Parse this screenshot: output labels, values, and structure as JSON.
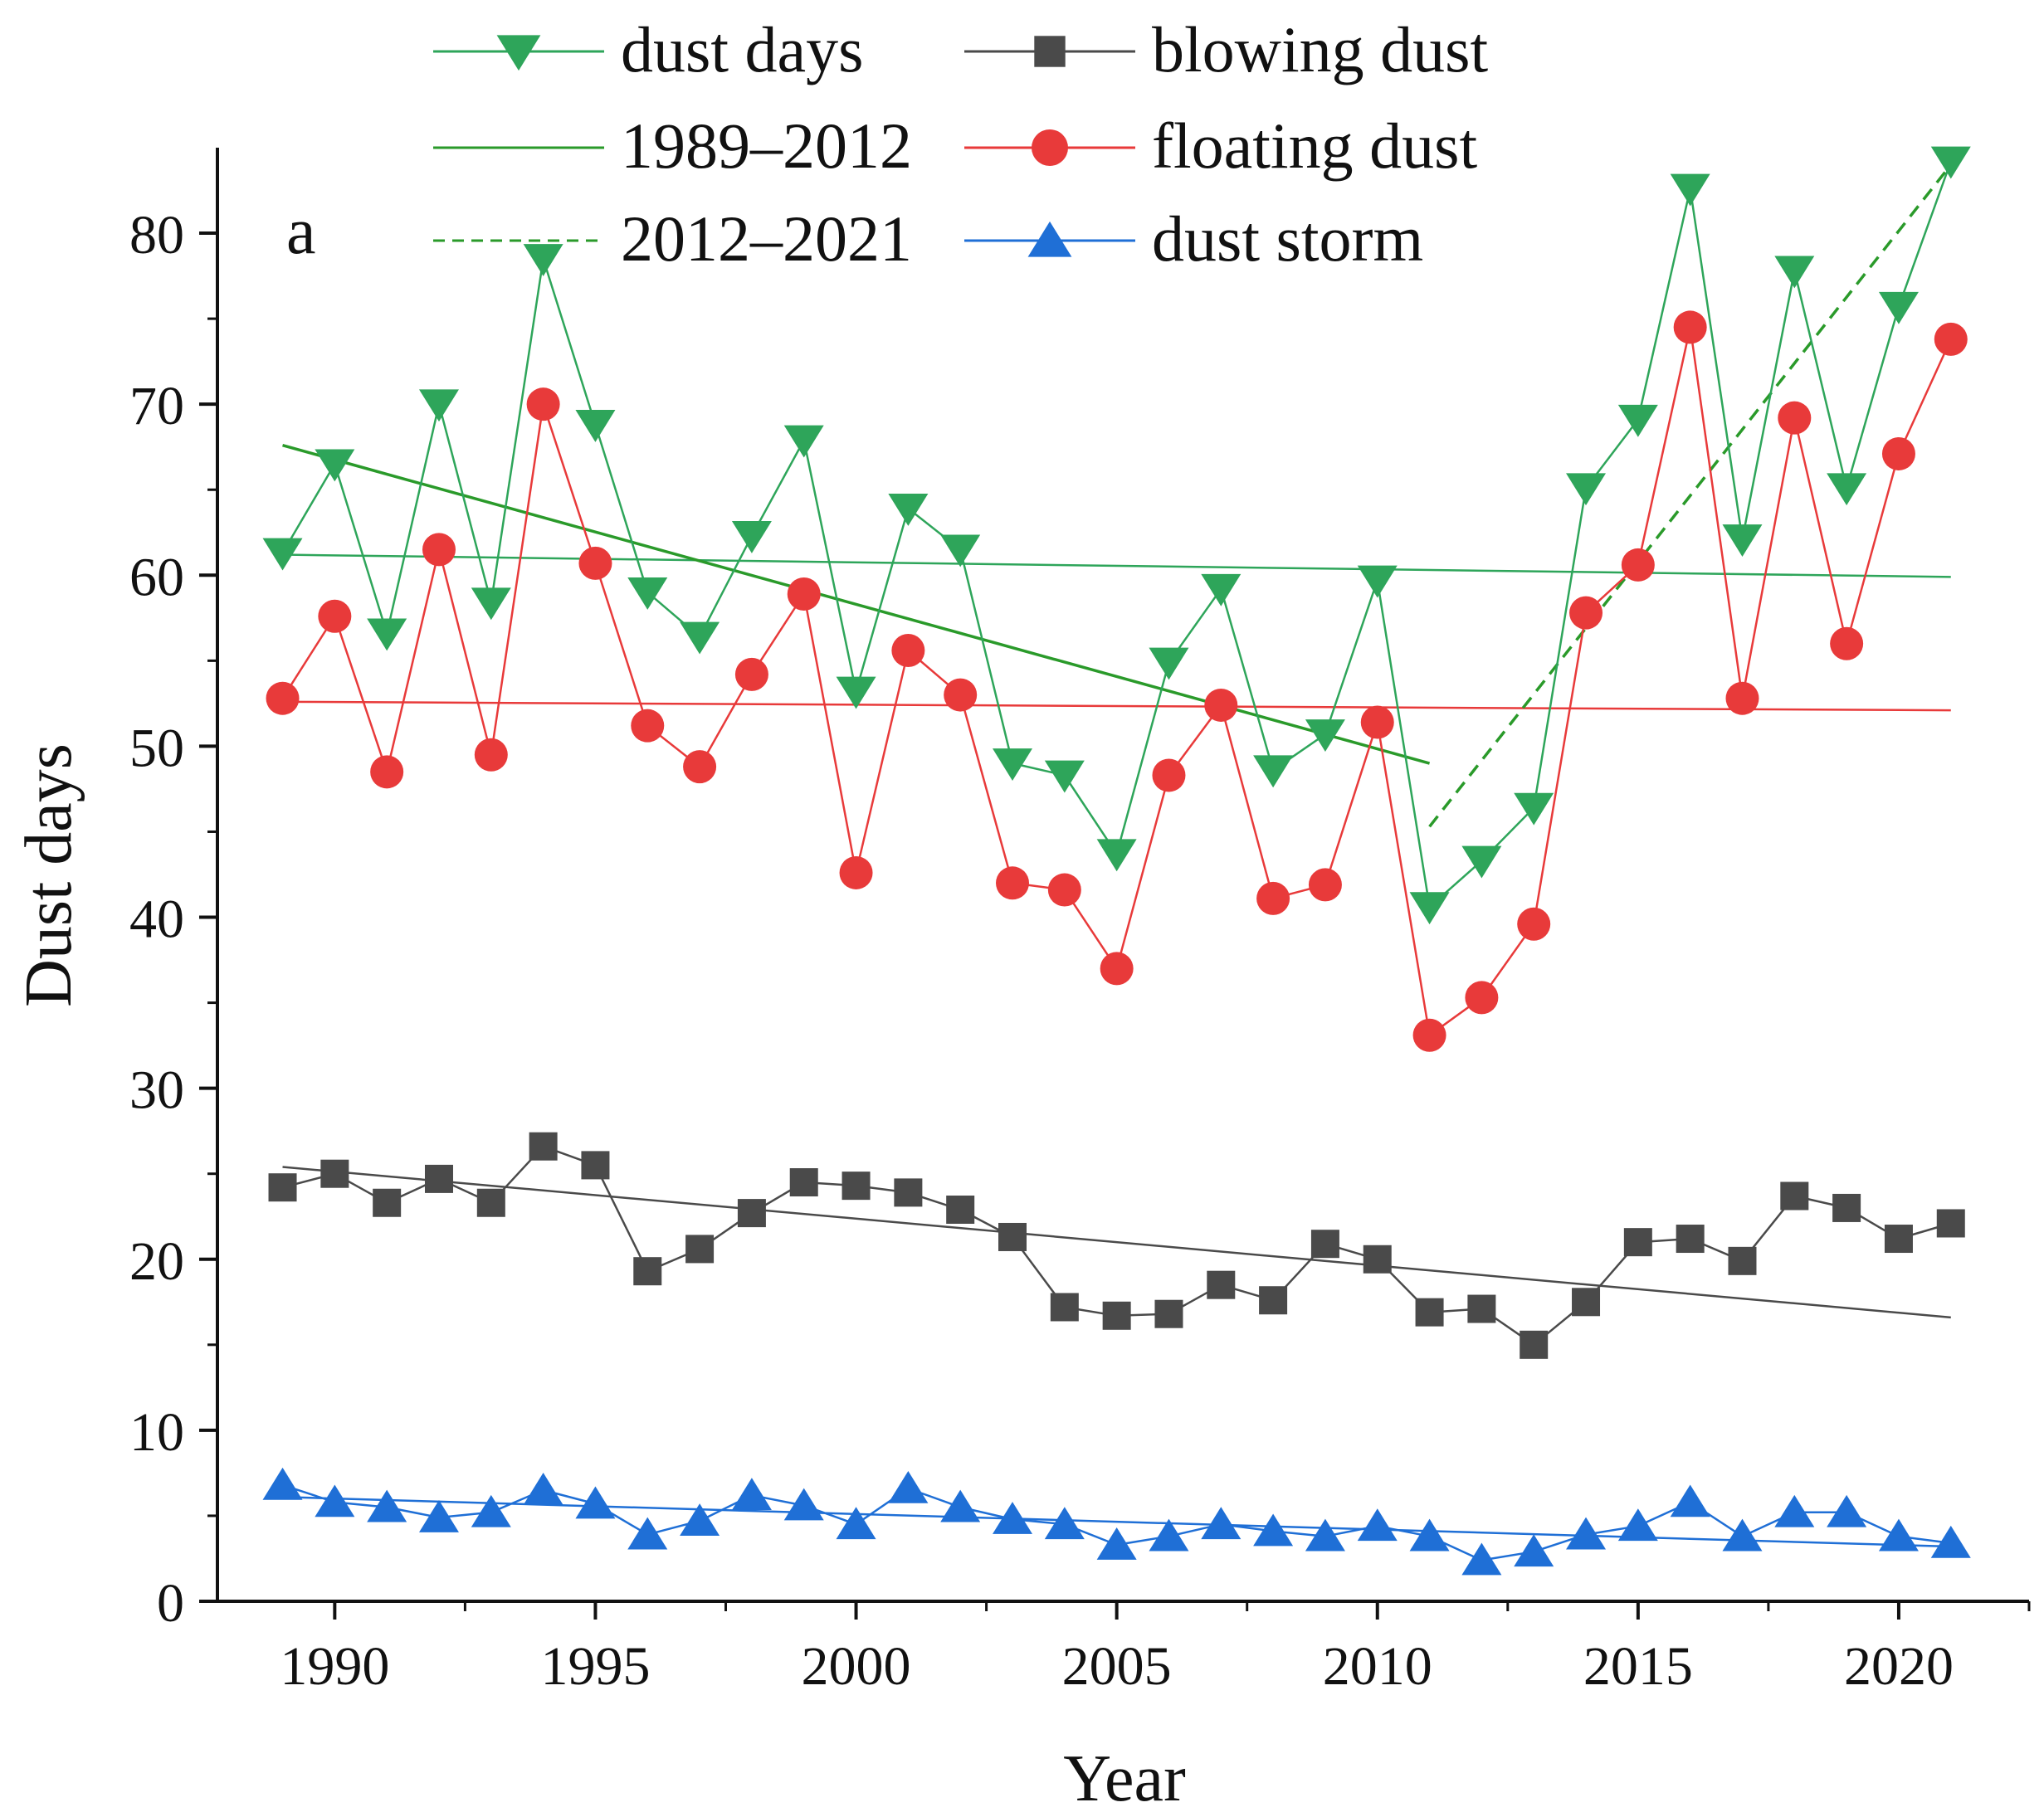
{
  "chart_data": {
    "type": "line",
    "panel_label": "a",
    "xlabel": "Year",
    "ylabel": "Dust days",
    "xlim": [
      1987.75,
      2022.5
    ],
    "ylim": [
      0,
      85
    ],
    "x_ticks": [
      1990,
      1995,
      2000,
      2005,
      2010,
      2015,
      2020
    ],
    "x_tick_labels": [
      "1990",
      "1995",
      "2000",
      "2005",
      "2010",
      "2015",
      "2020"
    ],
    "y_ticks": [
      0,
      10,
      20,
      30,
      40,
      50,
      60,
      70,
      80
    ],
    "y_tick_labels": [
      "0",
      "10",
      "20",
      "30",
      "40",
      "50",
      "60",
      "70",
      "80"
    ],
    "x": [
      1989,
      1990,
      1991,
      1992,
      1993,
      1994,
      1995,
      1996,
      1997,
      1998,
      1999,
      2000,
      2001,
      2002,
      2003,
      2004,
      2005,
      2006,
      2007,
      2008,
      2009,
      2010,
      2011,
      2012,
      2013,
      2014,
      2015,
      2016,
      2017,
      2018,
      2019,
      2020,
      2021
    ],
    "series": [
      {
        "name": "dust days",
        "color": "#2ea55a",
        "marker": "triangle-down",
        "values": [
          61.3,
          66.5,
          56.6,
          70.0,
          58.4,
          78.5,
          68.8,
          59.0,
          56.4,
          62.3,
          67.9,
          53.2,
          63.9,
          61.5,
          49.0,
          48.3,
          43.7,
          54.9,
          59.2,
          48.6,
          50.7,
          59.7,
          40.6,
          43.3,
          46.4,
          65.1,
          69.1,
          82.6,
          62.1,
          77.8,
          65.1,
          75.7,
          84.2
        ],
        "trend": [
          61.2,
          59.9
        ]
      },
      {
        "name": "blowing dust",
        "color": "#4a4a4a",
        "marker": "square",
        "values": [
          24.2,
          25.0,
          23.3,
          24.7,
          23.3,
          26.6,
          25.5,
          19.3,
          20.6,
          22.7,
          24.5,
          24.3,
          23.9,
          22.9,
          21.3,
          17.2,
          16.7,
          16.8,
          18.5,
          17.6,
          20.9,
          20.0,
          16.9,
          17.1,
          15.0,
          17.5,
          21.0,
          21.2,
          19.9,
          23.7,
          23.0,
          21.2,
          22.1
        ],
        "trend": [
          25.4,
          16.6
        ]
      },
      {
        "name": "floating dust",
        "color": "#e83a3a",
        "marker": "circle",
        "values": [
          52.8,
          57.6,
          48.5,
          61.5,
          49.5,
          70.0,
          60.7,
          51.2,
          48.8,
          54.2,
          58.9,
          42.6,
          55.6,
          53.0,
          42.0,
          41.6,
          37.0,
          48.3,
          52.4,
          41.1,
          41.9,
          51.4,
          33.1,
          35.3,
          39.6,
          57.8,
          60.6,
          74.5,
          52.8,
          69.2,
          56.0,
          67.1,
          73.8
        ],
        "trend": [
          52.6,
          52.1
        ]
      },
      {
        "name": "dust storm",
        "color": "#1f6fd6",
        "marker": "triangle-up",
        "values": [
          6.8,
          5.8,
          5.5,
          4.9,
          5.2,
          6.5,
          5.7,
          3.9,
          4.7,
          6.2,
          5.6,
          4.5,
          6.6,
          5.5,
          4.8,
          4.5,
          3.3,
          3.8,
          4.5,
          4.1,
          3.8,
          4.4,
          3.8,
          2.4,
          2.9,
          3.9,
          4.4,
          5.8,
          3.8,
          5.2,
          5.2,
          3.8,
          3.4
        ],
        "trend": [
          6.1,
          3.2
        ]
      }
    ],
    "piecewise_trends": [
      {
        "name": "1989–2012",
        "style": "solid",
        "color": "#2a9a2a",
        "x": [
          1989,
          2011
        ],
        "y": [
          67.6,
          49.0
        ]
      },
      {
        "name": "2012–2021",
        "style": "dashed",
        "color": "#2a9a2a",
        "x": [
          2011,
          2021
        ],
        "y": [
          45.3,
          84.0
        ]
      }
    ],
    "legend": [
      {
        "label": "dust days",
        "color": "#2ea55a",
        "marker": "triangle-down",
        "line": "solid"
      },
      {
        "label": "blowing dust",
        "color": "#4a4a4a",
        "marker": "square",
        "line": "solid"
      },
      {
        "label": "1989–2012",
        "color": "#2a9a2a",
        "marker": "none",
        "line": "solid"
      },
      {
        "label": "floating dust",
        "color": "#e83a3a",
        "marker": "circle",
        "line": "solid"
      },
      {
        "label": "2012–2021",
        "color": "#2a9a2a",
        "marker": "none",
        "line": "dashed"
      },
      {
        "label": "dust storm",
        "color": "#1f6fd6",
        "marker": "triangle-up",
        "line": "solid"
      }
    ],
    "legend_position": "top-center",
    "grid": false
  }
}
